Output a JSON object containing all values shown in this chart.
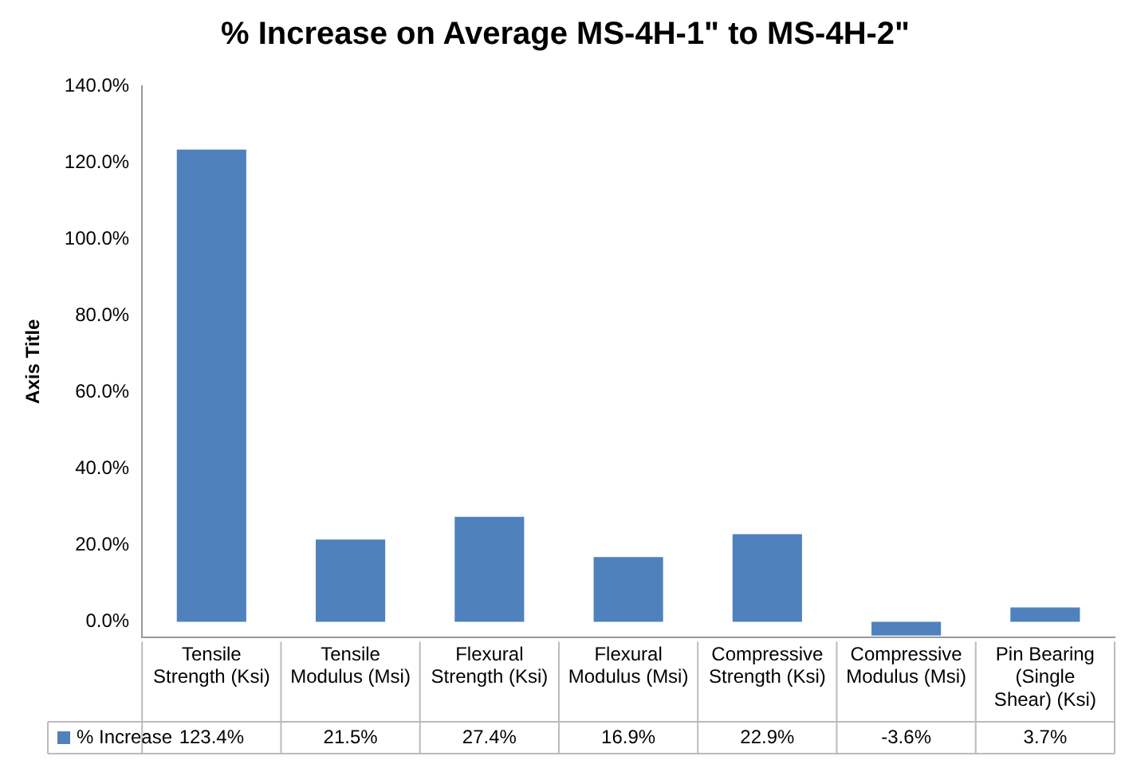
{
  "chart_data": {
    "type": "bar",
    "title": "% Increase on Average MS-4H-1\" to MS-4H-2\"",
    "ylabel": "Axis Title",
    "categories": [
      "Tensile Strength (Ksi)",
      "Tensile Modulus (Msi)",
      "Flexural Strength (Ksi)",
      "Flexural Modulus (Msi)",
      "Compressive Strength (Ksi)",
      "Compressive Modulus (Msi)",
      "Pin Bearing (Single Shear) (Ksi)"
    ],
    "series": [
      {
        "name": "% Increase",
        "color": "#4f81bd",
        "values": [
          123.4,
          21.5,
          27.4,
          16.9,
          22.9,
          -3.6,
          3.7
        ],
        "value_labels": [
          "123.4%",
          "21.5%",
          "27.4%",
          "16.9%",
          "22.9%",
          "-3.6%",
          "3.7%"
        ]
      }
    ],
    "ylim": [
      -4,
      140
    ],
    "yticks": [
      {
        "value": 0,
        "label": "0.0%"
      },
      {
        "value": 20,
        "label": "20.0%"
      },
      {
        "value": 40,
        "label": "40.0%"
      },
      {
        "value": 60,
        "label": "60.0%"
      },
      {
        "value": 80,
        "label": "80.0%"
      },
      {
        "value": 100,
        "label": "100.0%"
      },
      {
        "value": 120,
        "label": "120.0%"
      },
      {
        "value": 140,
        "label": "140.0%"
      }
    ],
    "grid": false,
    "legend": "bottom"
  }
}
